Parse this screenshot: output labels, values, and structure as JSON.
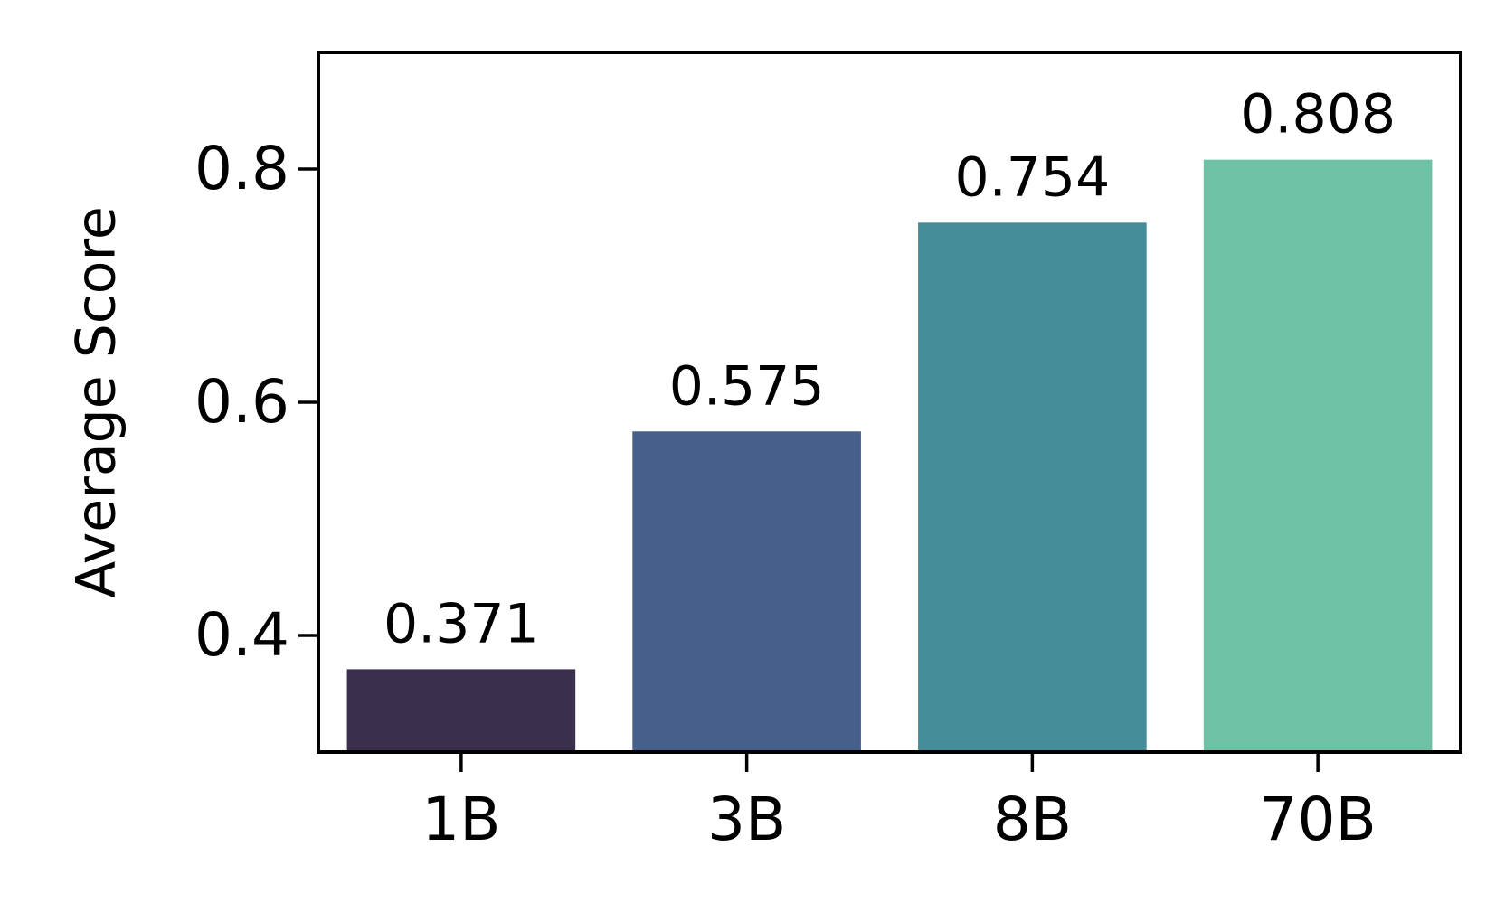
{
  "chart_data": {
    "type": "bar",
    "y_label": "Average Score",
    "categories": [
      "1B",
      "3B",
      "8B",
      "70B"
    ],
    "values": [
      0.371,
      0.575,
      0.754,
      0.808
    ],
    "colors": [
      "#3b2f4e",
      "#46608b",
      "#448d98",
      "#6fc1a5"
    ],
    "ylim": [
      0.3,
      0.9
    ],
    "yticks": [
      0.4,
      0.6,
      0.8
    ],
    "grid": false
  }
}
